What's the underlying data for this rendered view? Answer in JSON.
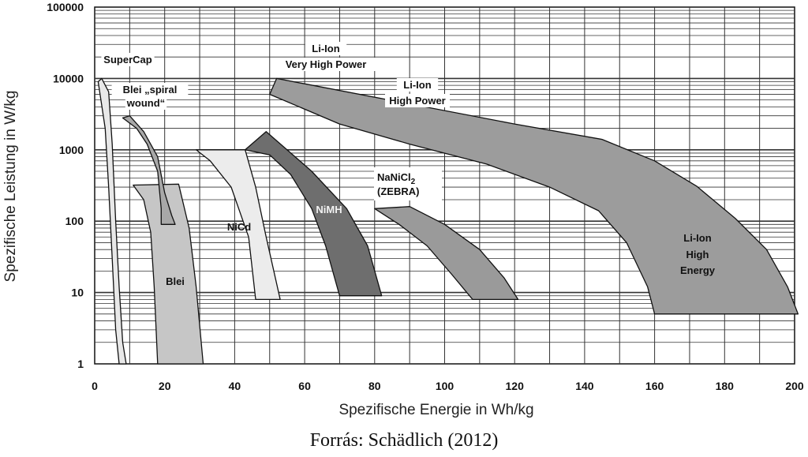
{
  "chart_data": {
    "type": "area",
    "xlabel": "Spezifische Energie in  Wh/kg",
    "ylabel": "Spezifische Leistung in W/kg",
    "xlim": [
      0,
      200
    ],
    "ylim": [
      1,
      100000
    ],
    "yscale": "log",
    "grid": true,
    "x_ticks": [
      "0",
      "20",
      "40",
      "60",
      "80",
      "100",
      "120",
      "140",
      "160",
      "180",
      "200"
    ],
    "y_ticks": [
      "1",
      "10",
      "100",
      "1000",
      "10000",
      "100000"
    ],
    "series": [
      {
        "name": "SuperCap",
        "color": "#e8e8e8",
        "energy_range": [
          1,
          9
        ],
        "power_range": [
          1,
          10000
        ]
      },
      {
        "name": "Blei „spiral wound“",
        "color": "#a8a8a8",
        "energy_range": [
          8,
          24
        ],
        "power_range": [
          90,
          3000
        ]
      },
      {
        "name": "Blei",
        "color": "#c6c6c6",
        "energy_range": [
          11,
          31
        ],
        "power_range": [
          1,
          330
        ]
      },
      {
        "name": "NiCd",
        "color": "#ececec",
        "energy_range": [
          29,
          53
        ],
        "power_range": [
          8,
          1000
        ]
      },
      {
        "name": "NiMH",
        "color": "#6e6e6e",
        "energy_range": [
          43,
          82
        ],
        "power_range": [
          9,
          1800
        ]
      },
      {
        "name": "NaNiCl2 (ZEBRA)",
        "color": "#9a9a9a",
        "energy_range": [
          80,
          121
        ],
        "power_range": [
          8,
          160
        ]
      },
      {
        "name": "Li-Ion Very High Power",
        "color": "#9c9c9c",
        "energy_range": [
          50,
          201
        ],
        "power_range": [
          5,
          10000
        ]
      },
      {
        "name": "Li-Ion High Power",
        "color": "#9c9c9c",
        "energy_range": [
          50,
          201
        ],
        "power_range": [
          5,
          10000
        ]
      },
      {
        "name": "Li-Ion High Energy",
        "color": "#9c9c9c",
        "energy_range": [
          50,
          201
        ],
        "power_range": [
          5,
          10000
        ]
      }
    ],
    "labels": {
      "supercap": "SuperCap",
      "blei_spiral_1": "Blei „spiral",
      "blei_spiral_2": "wound“",
      "blei": "Blei",
      "nicd": "NiCd",
      "nimh": "NiMH",
      "zebra_1": "NaNiCl",
      "zebra_sub": "2",
      "zebra_2": "(ZEBRA)",
      "liion_vhp_1": "Li-Ion",
      "liion_vhp_2": "Very  High Power",
      "liion_hp_1": "Li-Ion",
      "liion_hp_2": "High Power",
      "liion_he_1": "Li-Ion",
      "liion_he_2": "High",
      "liion_he_3": "Energy"
    }
  },
  "caption": "Forrás: Schädlich (2012)"
}
